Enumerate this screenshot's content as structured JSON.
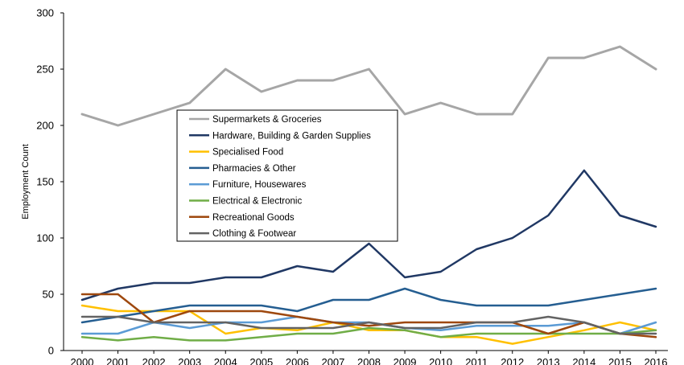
{
  "chart_data": {
    "type": "line",
    "title": "",
    "xlabel": "",
    "ylabel": "Employment Count",
    "ylim": [
      0,
      300
    ],
    "yticks": [
      0,
      50,
      100,
      150,
      200,
      250,
      300
    ],
    "grid": false,
    "legend_position": "center-left",
    "categories": [
      "2000",
      "2001",
      "2002",
      "2003",
      "2004",
      "2005",
      "2006",
      "2007",
      "2008",
      "2009",
      "2010",
      "2011",
      "2012",
      "2013",
      "2014",
      "2015",
      "2016"
    ],
    "series": [
      {
        "name": "Supermarkets & Groceries",
        "color": "#a6a6a6",
        "values": [
          210,
          200,
          210,
          220,
          250,
          230,
          240,
          240,
          250,
          210,
          220,
          210,
          210,
          260,
          260,
          270,
          250
        ]
      },
      {
        "name": "Hardware, Building & Garden Supplies",
        "color": "#203864",
        "values": [
          45,
          55,
          60,
          60,
          65,
          65,
          75,
          70,
          95,
          65,
          70,
          90,
          100,
          120,
          160,
          120,
          110
        ]
      },
      {
        "name": "Specialised Food",
        "color": "#ffc000",
        "values": [
          40,
          35,
          35,
          35,
          15,
          20,
          18,
          25,
          18,
          18,
          12,
          12,
          6,
          12,
          18,
          25,
          18
        ]
      },
      {
        "name": "Pharmacies & Other",
        "color": "#255e91",
        "values": [
          25,
          30,
          35,
          40,
          40,
          40,
          35,
          45,
          45,
          55,
          45,
          40,
          40,
          40,
          45,
          50,
          55
        ]
      },
      {
        "name": "Furniture, Housewares",
        "color": "#5b9bd5",
        "values": [
          15,
          15,
          25,
          20,
          25,
          25,
          30,
          25,
          25,
          20,
          18,
          22,
          22,
          22,
          25,
          15,
          25
        ]
      },
      {
        "name": "Electrical & Electronic",
        "color": "#70ad47",
        "values": [
          12,
          9,
          12,
          9,
          9,
          12,
          15,
          15,
          20,
          18,
          12,
          15,
          15,
          15,
          15,
          15,
          18
        ]
      },
      {
        "name": "Recreational Goods",
        "color": "#9e480e",
        "values": [
          50,
          50,
          25,
          35,
          35,
          35,
          30,
          25,
          22,
          25,
          25,
          25,
          25,
          15,
          25,
          15,
          12
        ]
      },
      {
        "name": "Clothing & Footwear",
        "color": "#636363",
        "values": [
          30,
          30,
          25,
          25,
          25,
          20,
          20,
          20,
          25,
          20,
          20,
          25,
          25,
          30,
          25,
          15,
          15
        ]
      }
    ]
  }
}
